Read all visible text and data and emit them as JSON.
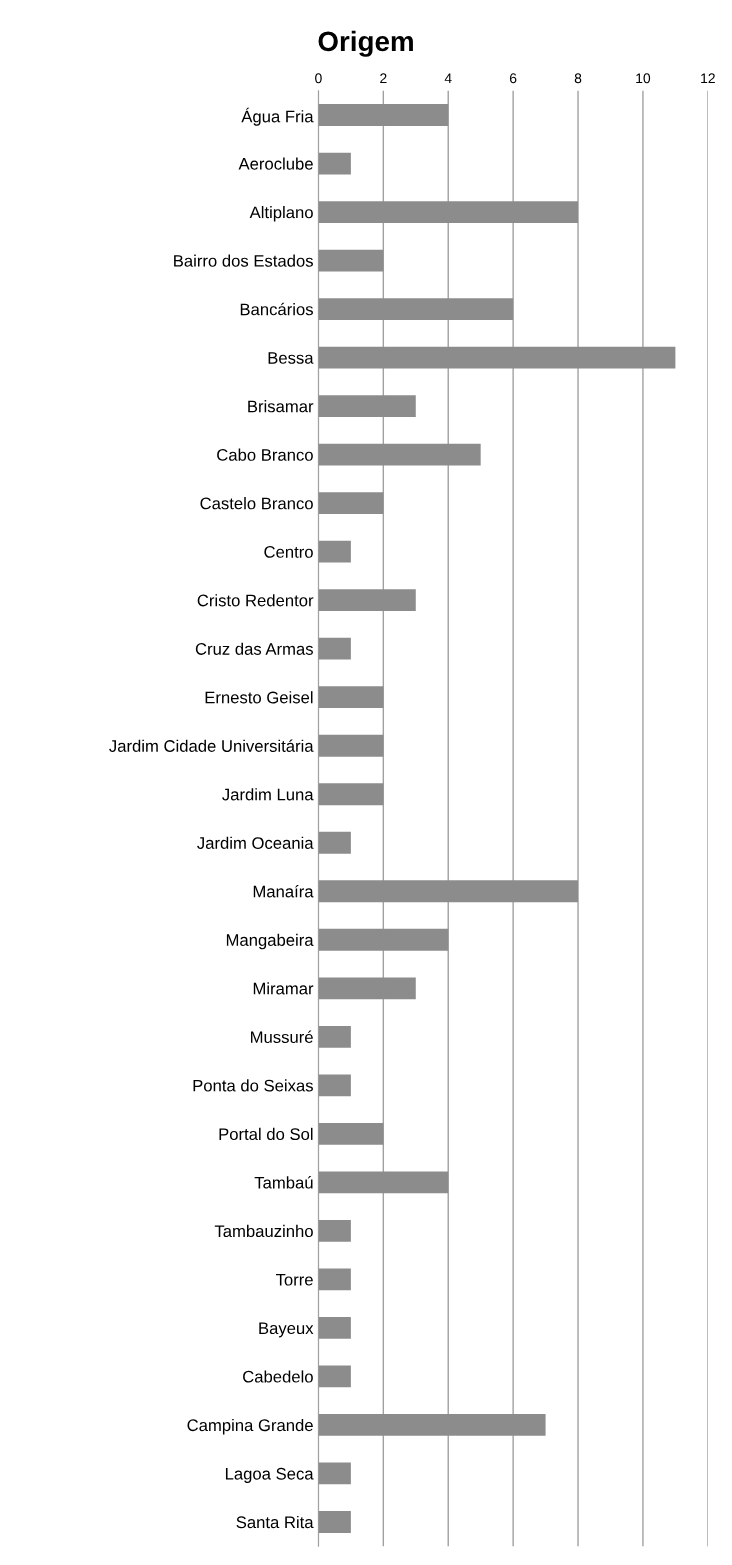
{
  "chart_data": {
    "type": "bar",
    "orientation": "horizontal",
    "title": "Origem",
    "categories": [
      "Água Fria",
      "Aeroclube",
      "Altiplano",
      "Bairro dos Estados",
      "Bancários",
      "Bessa",
      "Brisamar",
      "Cabo Branco",
      "Castelo Branco",
      "Centro",
      "Cristo Redentor",
      "Cruz das Armas",
      "Ernesto Geisel",
      "Jardim Cidade Universitária",
      "Jardim Luna",
      "Jardim Oceania",
      "Manaíra",
      "Mangabeira",
      "Miramar",
      "Mussuré",
      "Ponta do Seixas",
      "Portal do Sol",
      "Tambaú",
      "Tambauzinho",
      "Torre",
      "Bayeux",
      "Cabedelo",
      "Campina Grande",
      "Lagoa Seca",
      "Santa Rita"
    ],
    "values": [
      4,
      1,
      8,
      2,
      6,
      11,
      3,
      5,
      2,
      1,
      3,
      1,
      2,
      2,
      2,
      1,
      8,
      4,
      3,
      1,
      1,
      2,
      4,
      1,
      1,
      1,
      1,
      7,
      1,
      1
    ],
    "color": "#8c8c8c",
    "xlim": [
      0,
      12
    ],
    "xticks": [
      0,
      2,
      4,
      6,
      8,
      10,
      12
    ],
    "grid": "x"
  }
}
